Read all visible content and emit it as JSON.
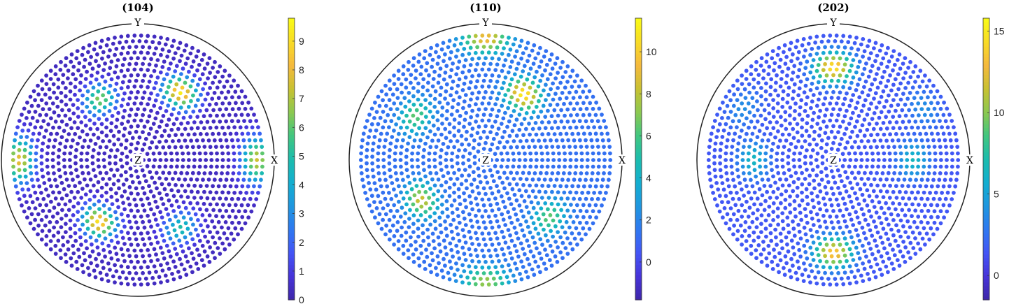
{
  "chart_data": [
    {
      "type": "scatter",
      "title": "(104)",
      "axis_labels": {
        "x": "X",
        "y": "Y",
        "z": "Z"
      },
      "colorbar": {
        "ticks": [
          0,
          1,
          2,
          3,
          4,
          5,
          6,
          7,
          8,
          9
        ],
        "range": [
          0,
          9.8
        ]
      },
      "base_value": 0.4,
      "peaks": [
        {
          "azimuth_deg": 58,
          "polar_deg": 58,
          "value": 9.5
        },
        {
          "azimuth_deg": 122,
          "polar_deg": 52,
          "value": 6.5
        },
        {
          "azimuth_deg": 238,
          "polar_deg": 53,
          "value": 9.2
        },
        {
          "azimuth_deg": 302,
          "polar_deg": 58,
          "value": 5.0
        },
        {
          "azimuth_deg": 0,
          "polar_deg": 86,
          "value": 7.5
        },
        {
          "azimuth_deg": 180,
          "polar_deg": 86,
          "value": 8.0
        }
      ]
    },
    {
      "type": "scatter",
      "title": "(110)",
      "axis_labels": {
        "x": "X",
        "y": "Y",
        "z": "Z"
      },
      "colorbar": {
        "ticks": [
          0,
          2,
          4,
          6,
          8,
          10
        ],
        "range": [
          -1.8,
          11.6
        ]
      },
      "base_value": 1.3,
      "peaks": [
        {
          "azimuth_deg": 60,
          "polar_deg": 55,
          "value": 11.3
        },
        {
          "azimuth_deg": 90,
          "polar_deg": 88,
          "value": 9.5
        },
        {
          "azimuth_deg": 270,
          "polar_deg": 88,
          "value": 7.5
        },
        {
          "azimuth_deg": 148,
          "polar_deg": 60,
          "value": 6.5
        },
        {
          "azimuth_deg": 212,
          "polar_deg": 55,
          "value": 8.5
        },
        {
          "azimuth_deg": 318,
          "polar_deg": 62,
          "value": 6.5
        }
      ]
    },
    {
      "type": "scatter",
      "title": "(202)",
      "axis_labels": {
        "x": "X",
        "y": "Y",
        "z": "Z"
      },
      "colorbar": {
        "ticks": [
          0,
          5,
          10,
          15
        ],
        "range": [
          -1.5,
          15.8
        ]
      },
      "base_value": 1.5,
      "peaks": [
        {
          "azimuth_deg": 90,
          "polar_deg": 67,
          "value": 15.0
        },
        {
          "azimuth_deg": 270,
          "polar_deg": 67,
          "value": 14.0
        },
        {
          "azimuth_deg": 0,
          "polar_deg": 58,
          "value": 6.5
        },
        {
          "azimuth_deg": 180,
          "polar_deg": 58,
          "value": 6.5
        },
        {
          "azimuth_deg": 30,
          "polar_deg": 75,
          "value": 4.0
        },
        {
          "azimuth_deg": 150,
          "polar_deg": 75,
          "value": 4.0
        }
      ]
    }
  ],
  "colormap": [
    "#3e26a8",
    "#4733d8",
    "#4354f5",
    "#2f78f0",
    "#1f96df",
    "#13aed0",
    "#1cbcad",
    "#41c680",
    "#8bc850",
    "#c8c131",
    "#f5b93d",
    "#f8db26",
    "#f9fb15"
  ]
}
